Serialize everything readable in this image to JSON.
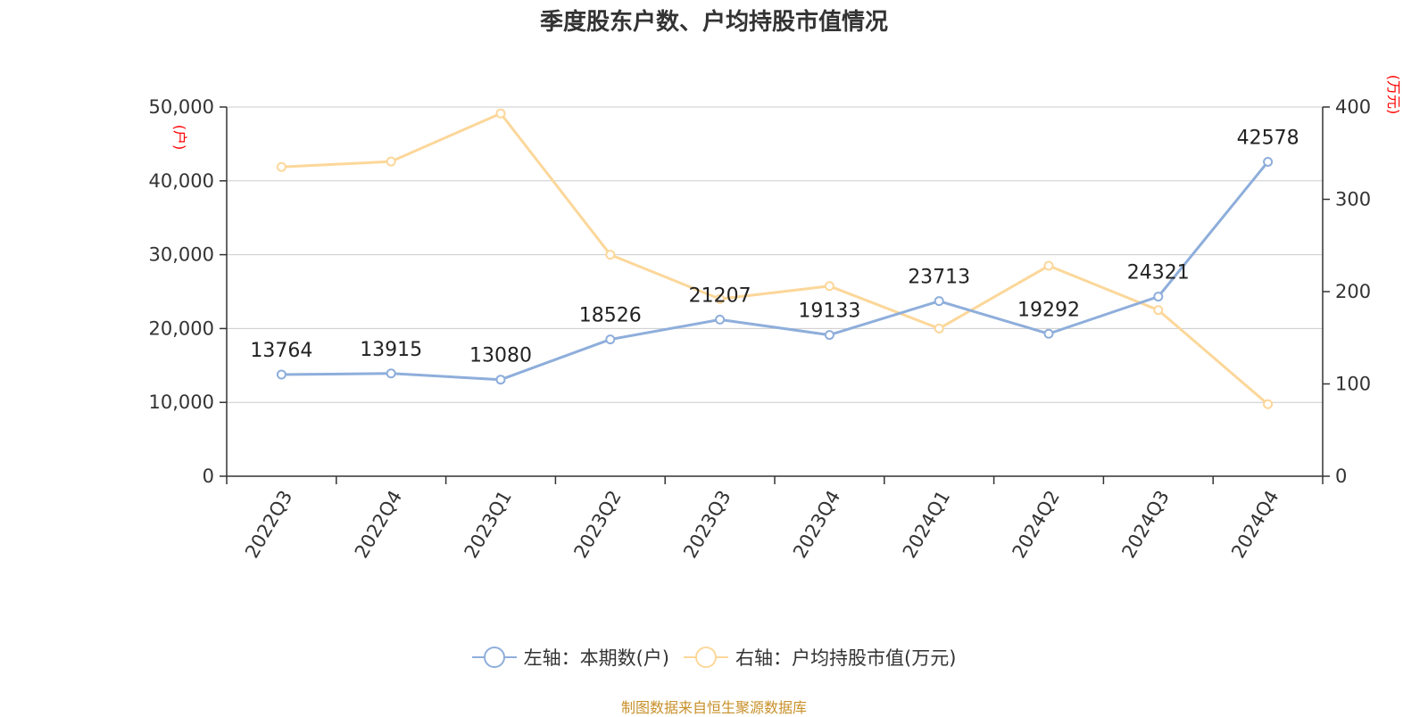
{
  "title": "季度股东户数、户均持股市值情况",
  "colors": {
    "left_series": "#8eaedb",
    "right_series": "#fcd79a",
    "axis_unit": "#ff0000",
    "source": "#c8902a"
  },
  "chart_data": {
    "type": "line",
    "title": "季度股东户数、户均持股市值情况",
    "categories": [
      "2022Q3",
      "2022Q4",
      "2023Q1",
      "2023Q2",
      "2023Q3",
      "2023Q4",
      "2024Q1",
      "2024Q2",
      "2024Q3",
      "2024Q4"
    ],
    "left_axis": {
      "unit": "(户)",
      "range": [
        0,
        50000
      ],
      "ticks": [
        "0",
        "10,000",
        "20,000",
        "30,000",
        "40,000",
        "50,000"
      ]
    },
    "right_axis": {
      "unit": "(万元)",
      "range": [
        0,
        400
      ],
      "ticks": [
        "0",
        "100",
        "200",
        "300",
        "400"
      ]
    },
    "series": [
      {
        "name": "左轴：本期数(户)",
        "axis": "left",
        "values": [
          13764,
          13915,
          13080,
          18526,
          21207,
          19133,
          23713,
          19292,
          24321,
          42578
        ],
        "data_labels": true
      },
      {
        "name": "右轴：户均持股市值(万元)",
        "axis": "right",
        "values": [
          335,
          341,
          393,
          240,
          192,
          206,
          160,
          228,
          180,
          78
        ],
        "data_labels": false
      }
    ],
    "grid": true,
    "legend_position": "bottom"
  },
  "source": "制图数据来自恒生聚源数据库"
}
